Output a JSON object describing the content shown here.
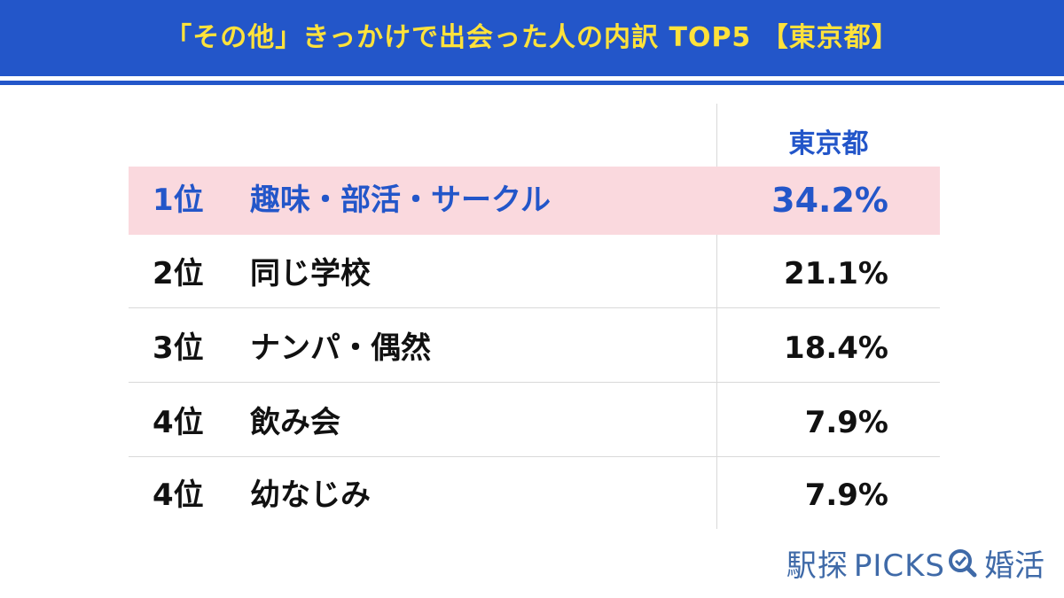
{
  "header": {
    "title": "「その他」きっかけで出会った人の内訳 TOP5 【東京都】",
    "bg_color": "#2356c9",
    "title_color": "#ffe23b"
  },
  "chart_data": {
    "type": "table",
    "title": "「その他」きっかけで出会った人の内訳 TOP5 【東京都】",
    "column_header": "東京都",
    "highlight_color": "#fad9de",
    "rows": [
      {
        "rank": "1位",
        "label": "趣味・部活・サークル",
        "value": "34.2%"
      },
      {
        "rank": "2位",
        "label": "同じ学校",
        "value": "21.1%"
      },
      {
        "rank": "3位",
        "label": "ナンパ・偶然",
        "value": "18.4%"
      },
      {
        "rank": "4位",
        "label": "飲み会",
        "value": "7.9%"
      },
      {
        "rank": "4位",
        "label": "幼なじみ",
        "value": "7.9%"
      }
    ]
  },
  "footer": {
    "brand_pre": "駅探",
    "brand_picks": "PICKS",
    "brand_post": "婚活",
    "brand_icon": "search-magnifier-icon",
    "brand_color": "#3f6aa8"
  }
}
